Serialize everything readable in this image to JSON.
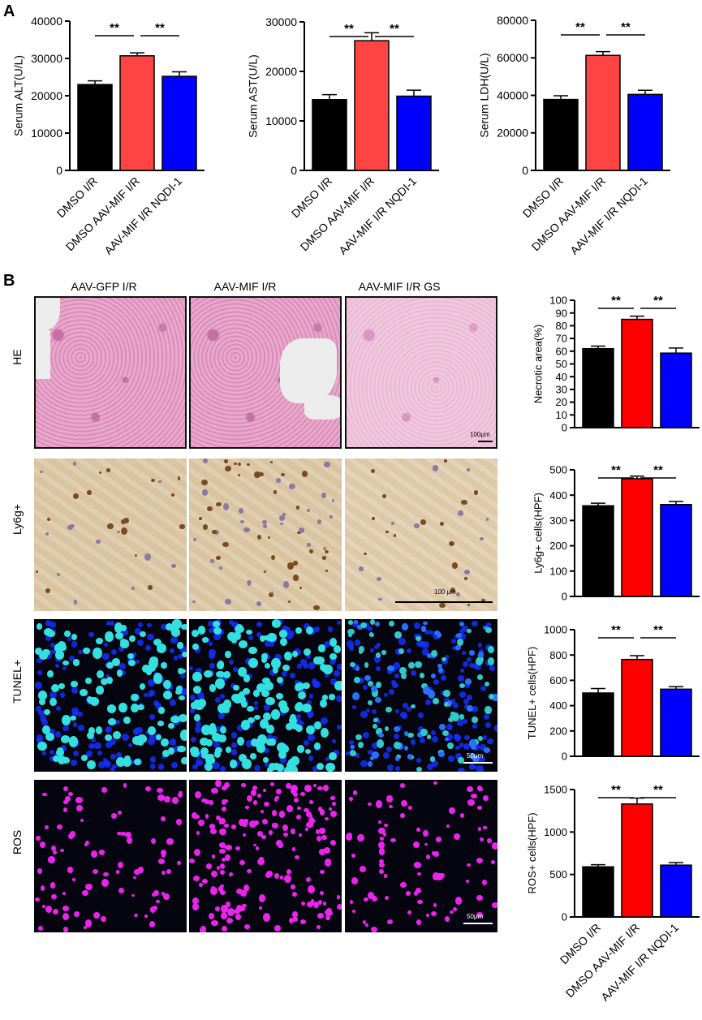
{
  "panel_labels": {
    "a": "A",
    "b": "B"
  },
  "significance_mark": "**",
  "chart_data": [
    {
      "type": "bar",
      "ylabel": "Serum ALT(U/L)",
      "ylim": [
        0,
        40000
      ],
      "yticks": [
        0,
        10000,
        20000,
        30000,
        40000
      ],
      "categories": [
        "DMSO I/R",
        "DMSO AAV-MIF I/R",
        "AAV-MIF I/R NQDI-1"
      ],
      "values": [
        23000,
        30700,
        25200
      ],
      "errors": [
        1000,
        800,
        1200
      ],
      "colors": [
        "#000000",
        "#ff4444",
        "#0000ff"
      ]
    },
    {
      "type": "bar",
      "ylabel": "Serum AST(U/L)",
      "ylim": [
        0,
        30000
      ],
      "yticks": [
        0,
        10000,
        20000,
        30000
      ],
      "categories": [
        "DMSO I/R",
        "DMSO AAV-MIF I/R",
        "AAV-MIF I/R NQDI-1"
      ],
      "values": [
        14300,
        26200,
        15000
      ],
      "errors": [
        1000,
        1600,
        1200
      ],
      "colors": [
        "#000000",
        "#ff4444",
        "#0000ff"
      ]
    },
    {
      "type": "bar",
      "ylabel": "Serum LDH(U/L)",
      "ylim": [
        0,
        80000
      ],
      "yticks": [
        0,
        20000,
        40000,
        60000,
        80000
      ],
      "categories": [
        "DMSO I/R",
        "DMSO AAV-MIF I/R",
        "AAV-MIF I/R NQDI-1"
      ],
      "values": [
        37800,
        61300,
        40500
      ],
      "errors": [
        2000,
        2000,
        2200
      ],
      "colors": [
        "#000000",
        "#ff4444",
        "#0000ff"
      ]
    },
    {
      "type": "bar",
      "ylabel": "Necrotic area(%)",
      "ylim": [
        0,
        100
      ],
      "yticks": [
        0,
        10,
        20,
        30,
        40,
        50,
        60,
        70,
        80,
        90,
        100
      ],
      "categories": [
        "DMSO I/R",
        "DMSO AAV-MIF I/R",
        "AAV-MIF I/R NQDI-1"
      ],
      "values": [
        62,
        85,
        58.5
      ],
      "errors": [
        2,
        2.5,
        4
      ],
      "colors": [
        "#000000",
        "#ff0000",
        "#0000ff"
      ]
    },
    {
      "type": "bar",
      "ylabel": "Ly6g+ cells(HPF)",
      "ylim": [
        0,
        500
      ],
      "yticks": [
        0,
        100,
        200,
        300,
        400,
        500
      ],
      "categories": [
        "DMSO I/R",
        "DMSO AAV-MIF I/R",
        "AAV-MIF I/R NQDI-1"
      ],
      "values": [
        358,
        465,
        363
      ],
      "errors": [
        10,
        10,
        12
      ],
      "colors": [
        "#000000",
        "#ff0000",
        "#0000ff"
      ]
    },
    {
      "type": "bar",
      "ylabel": "TUNEL+ cells(HPF)",
      "ylim": [
        0,
        1000
      ],
      "yticks": [
        0,
        200,
        400,
        600,
        800,
        1000
      ],
      "categories": [
        "DMSO I/R",
        "DMSO AAV-MIF I/R",
        "AAV-MIF I/R NQDI-1"
      ],
      "values": [
        500,
        765,
        530
      ],
      "errors": [
        35,
        30,
        20
      ],
      "colors": [
        "#000000",
        "#ff0000",
        "#0000ff"
      ]
    },
    {
      "type": "bar",
      "ylabel": "ROS+ cells(HPF)",
      "ylim": [
        0,
        1500
      ],
      "yticks": [
        0,
        500,
        1000,
        1500
      ],
      "categories": [
        "DMSO I/R",
        "DMSO AAV-MIF I/R",
        "AAV-MIF I/R NQDI-1"
      ],
      "values": [
        590,
        1330,
        610
      ],
      "errors": [
        25,
        70,
        30
      ],
      "colors": [
        "#000000",
        "#ff0000",
        "#0000ff"
      ]
    }
  ],
  "micrographs": {
    "column_titles": [
      "AAV-GFP I/R",
      "AAV-MIF I/R",
      "AAV-MIF I/R GS"
    ],
    "row_labels": [
      "HE",
      "Ly6g+",
      "TUNEL+",
      "ROS"
    ],
    "scale_labels": {
      "he": "100μm",
      "ly6g": "100 μm",
      "tunel": "50μm",
      "ros": "50μm"
    },
    "colors": {
      "he_stain": "#e3a0c6",
      "ihc_bg": "#d9c3a0",
      "ihc_nuclei": "#7a4a20",
      "tunel_nuclei": "#33e0e0",
      "dapi": "#1530ff",
      "ros": "#ee22ee"
    }
  }
}
